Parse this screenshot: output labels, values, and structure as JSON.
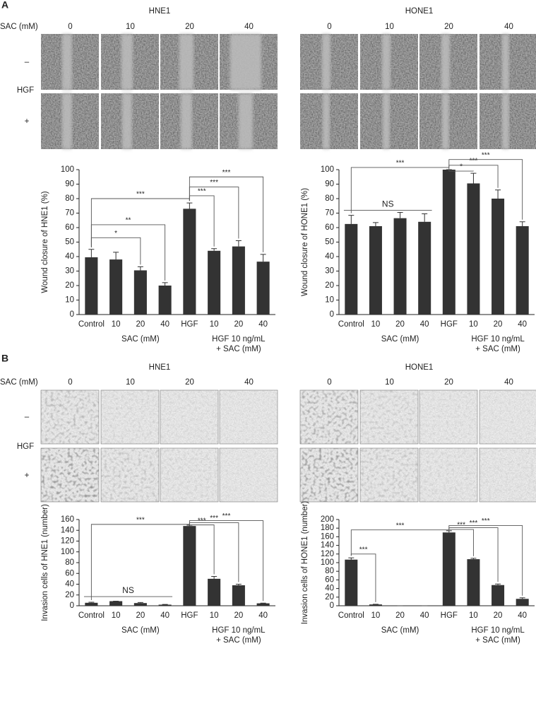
{
  "figure": {
    "panels": [
      {
        "letter": "A",
        "row_header": "SAC (mM)",
        "row_group": "HGF",
        "rows": [
          "–",
          "+"
        ],
        "blocks": [
          {
            "title": "HNE1",
            "columns": [
              "0",
              "10",
              "20",
              "40"
            ]
          },
          {
            "title": "HONE1",
            "columns": [
              "0",
              "10",
              "20",
              "40"
            ]
          }
        ]
      },
      {
        "letter": "B",
        "row_header": "SAC (mM)",
        "row_group": "HGF",
        "rows": [
          "–",
          "+"
        ],
        "blocks": [
          {
            "title": "HNE1",
            "columns": [
              "0",
              "10",
              "20",
              "40"
            ]
          },
          {
            "title": "HONE1",
            "columns": [
              "0",
              "10",
              "20",
              "40"
            ]
          }
        ]
      }
    ]
  },
  "chart_data": [
    {
      "type": "bar",
      "y_label": "Wound closure of HNE1 (%)",
      "color": "#333333",
      "categories": [
        "Control",
        "10",
        "20",
        "40",
        "HGF",
        "10",
        "20",
        "40"
      ],
      "values": [
        39.5,
        38,
        30.5,
        20,
        73,
        44,
        47,
        36.5
      ],
      "errors": [
        5.5,
        5,
        2.5,
        2,
        4,
        1.5,
        4,
        5
      ],
      "ylim": [
        0,
        100
      ],
      "yticks": [
        0,
        10,
        20,
        30,
        40,
        50,
        60,
        70,
        80,
        90,
        100
      ],
      "groups": [
        {
          "label": [
            "SAC (mM)"
          ],
          "from": 1,
          "to": 3
        },
        {
          "label": [
            "HGF 10 ng/mL",
            "+ SAC (mM)"
          ],
          "from": 5,
          "to": 7
        }
      ],
      "annotations": [
        {
          "text": "*",
          "from": 0,
          "to": 2,
          "y": 53
        },
        {
          "text": "**",
          "from": 0,
          "to": 3,
          "y": 62
        },
        {
          "text": "***",
          "from": 0,
          "to": 4,
          "y": 80
        },
        {
          "text": "***",
          "from": 4,
          "to": 5,
          "y": 82
        },
        {
          "text": "***",
          "from": 4,
          "to": 6,
          "y": 88
        },
        {
          "text": "***",
          "from": 4,
          "to": 7,
          "y": 95
        }
      ]
    },
    {
      "type": "bar",
      "y_label": "Wound closure of HONE1 (%)",
      "color": "#333333",
      "categories": [
        "Control",
        "10",
        "20",
        "40",
        "HGF",
        "10",
        "20",
        "40"
      ],
      "values": [
        62.5,
        61,
        66.5,
        64,
        100,
        90.5,
        80,
        61
      ],
      "errors": [
        6,
        2.5,
        4,
        5.5,
        0,
        7,
        6,
        3
      ],
      "ylim": [
        0,
        100
      ],
      "yticks": [
        0,
        10,
        20,
        30,
        40,
        50,
        60,
        70,
        80,
        90,
        100
      ],
      "groups": [
        {
          "label": [
            "SAC (mM)"
          ],
          "from": 1,
          "to": 3
        },
        {
          "label": [
            "HGF 10 ng/mL",
            "+ SAC (mM)"
          ],
          "from": 5,
          "to": 7
        }
      ],
      "annotations": [
        {
          "text": "NS",
          "from": 0,
          "to": 3,
          "y": 72,
          "drops": false
        },
        {
          "text": "***",
          "from": 0,
          "to": 4,
          "y": 101.5
        },
        {
          "text": "*",
          "from": 4,
          "to": 5,
          "y": 99
        },
        {
          "text": "***",
          "from": 4,
          "to": 6,
          "y": 103
        },
        {
          "text": "***",
          "from": 4,
          "to": 7,
          "y": 107
        }
      ]
    },
    {
      "type": "bar",
      "y_label": "Invasion cells of HNE1 (number)",
      "color": "#333333",
      "categories": [
        "Control",
        "10",
        "20",
        "40",
        "HGF",
        "10",
        "20",
        "40"
      ],
      "values": [
        5.5,
        8.5,
        5,
        2,
        148,
        50,
        38,
        4.5
      ],
      "errors": [
        1,
        0,
        1,
        0.5,
        1.5,
        4.5,
        2,
        0.5
      ],
      "ylim": [
        0,
        160
      ],
      "yticks": [
        0,
        20,
        40,
        60,
        80,
        100,
        120,
        140,
        160
      ],
      "groups": [
        {
          "label": [
            "SAC (mM)"
          ],
          "from": 1,
          "to": 3
        },
        {
          "label": [
            "HGF 10 ng/mL",
            "+ SAC (mM)"
          ],
          "from": 5,
          "to": 7
        }
      ],
      "annotations": [
        {
          "text": "NS",
          "from": 0,
          "to": 3,
          "y": 17,
          "drops": false
        },
        {
          "text": "***",
          "from": 0,
          "to": 4,
          "y": 151
        },
        {
          "text": "***",
          "from": 4,
          "to": 5,
          "y": 150
        },
        {
          "text": "***",
          "from": 4,
          "to": 6,
          "y": 154
        },
        {
          "text": "***",
          "from": 4,
          "to": 7,
          "y": 158
        }
      ]
    },
    {
      "type": "bar",
      "y_label": "Invasion cells of HONE1 (number)",
      "color": "#333333",
      "categories": [
        "Control",
        "10",
        "20",
        "40",
        "HGF",
        "10",
        "20",
        "40"
      ],
      "values": [
        107,
        3,
        0,
        0,
        170,
        108,
        48,
        16
      ],
      "errors": [
        4,
        0.5,
        0,
        0,
        4,
        2,
        2.5,
        2.5
      ],
      "ylim": [
        0,
        200
      ],
      "yticks": [
        0,
        20,
        40,
        60,
        80,
        100,
        120,
        140,
        160,
        180,
        200
      ],
      "groups": [
        {
          "label": [
            "SAC (mM)"
          ],
          "from": 1,
          "to": 3
        },
        {
          "label": [
            "HGF 10 ng/mL",
            "+ SAC (mM)"
          ],
          "from": 5,
          "to": 7
        }
      ],
      "annotations": [
        {
          "text": "***",
          "from": 0,
          "to": 1,
          "y": 120
        },
        {
          "text": "***",
          "from": 0,
          "to": 4,
          "y": 176
        },
        {
          "text": "***",
          "from": 4,
          "to": 5,
          "y": 177
        },
        {
          "text": "***",
          "from": 4,
          "to": 6,
          "y": 181
        },
        {
          "text": "***",
          "from": 4,
          "to": 7,
          "y": 186
        }
      ]
    }
  ]
}
